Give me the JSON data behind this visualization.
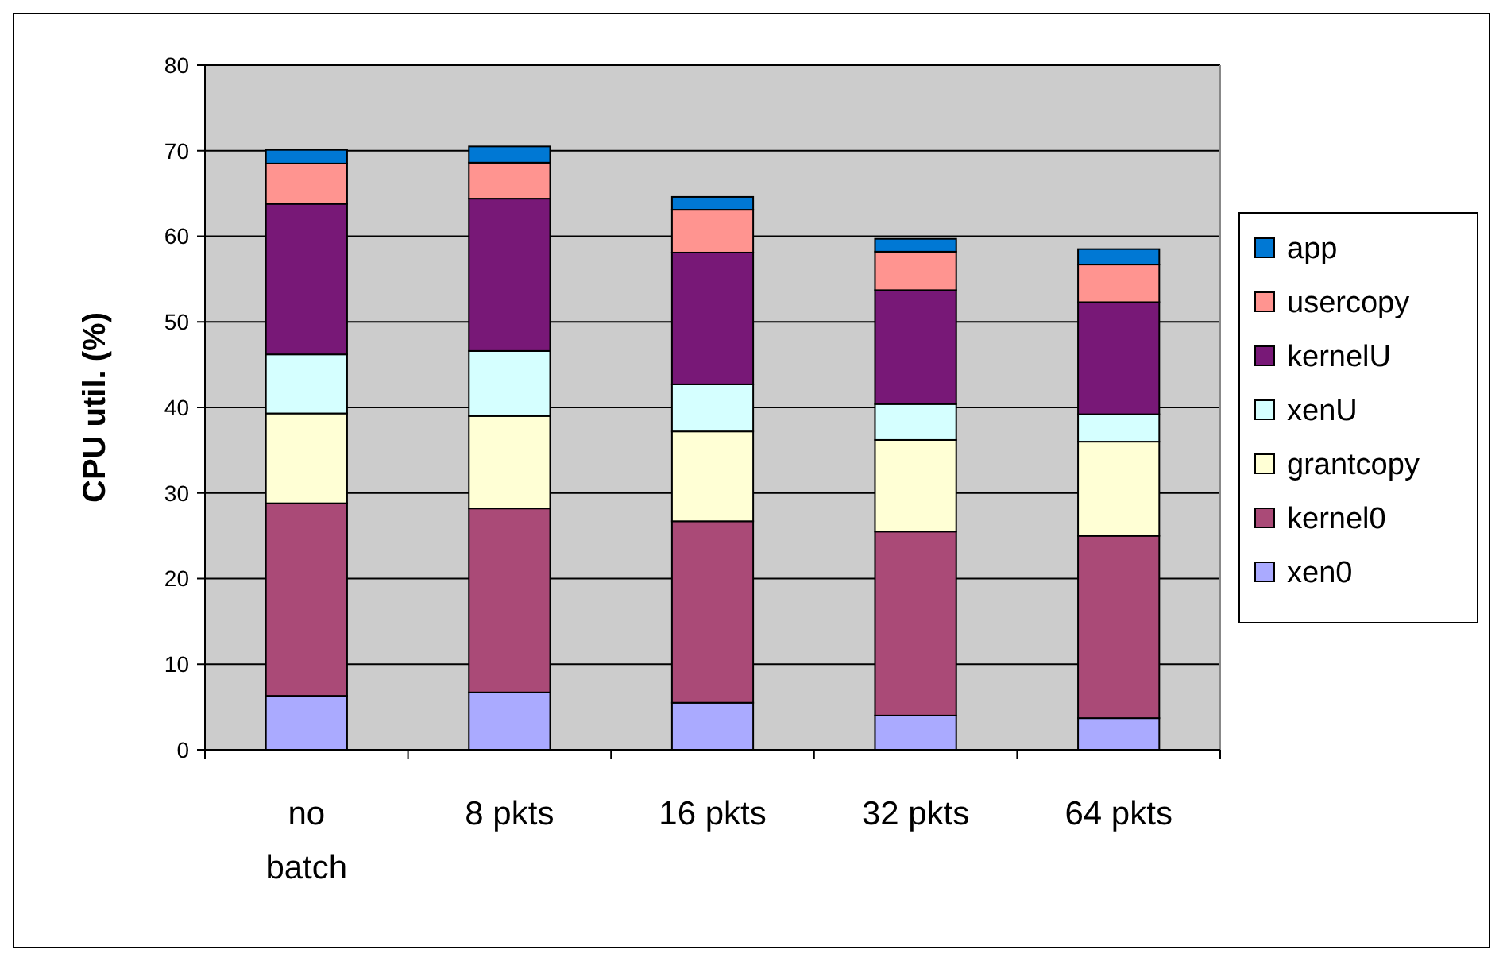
{
  "chart_data": {
    "type": "bar",
    "stacked": true,
    "ylabel": "CPU util. (%)",
    "categories": [
      "no batch",
      "8 pkts",
      "16 pkts",
      "32 pkts",
      "64 pkts"
    ],
    "series": [
      {
        "name": "xen0",
        "color": "#aaaaff",
        "values": [
          6.3,
          6.7,
          5.5,
          4.0,
          3.7
        ]
      },
      {
        "name": "kernel0",
        "color": "#aa4a77",
        "values": [
          22.5,
          21.5,
          21.2,
          21.5,
          21.3
        ]
      },
      {
        "name": "grantcopy",
        "color": "#ffffd5",
        "values": [
          10.5,
          10.8,
          10.5,
          10.7,
          11.0
        ]
      },
      {
        "name": "xenU",
        "color": "#d5ffff",
        "values": [
          6.9,
          7.6,
          5.5,
          4.2,
          3.2
        ]
      },
      {
        "name": "kernelU",
        "color": "#781877",
        "values": [
          17.6,
          17.8,
          15.4,
          13.3,
          13.1
        ]
      },
      {
        "name": "usercopy",
        "color": "#ff9490",
        "values": [
          4.7,
          4.2,
          5.0,
          4.5,
          4.4
        ]
      },
      {
        "name": "app",
        "color": "#0078d4",
        "values": [
          1.6,
          1.9,
          1.5,
          1.5,
          1.8
        ]
      }
    ],
    "ylim": [
      0,
      80
    ],
    "yticks": [
      0,
      10,
      20,
      30,
      40,
      50,
      60,
      70,
      80
    ],
    "grid": "y",
    "legend": "right"
  }
}
